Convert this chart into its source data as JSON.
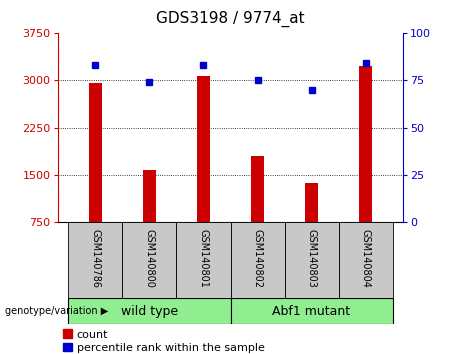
{
  "title": "GDS3198 / 9774_at",
  "samples": [
    "GSM140786",
    "GSM140800",
    "GSM140801",
    "GSM140802",
    "GSM140803",
    "GSM140804"
  ],
  "counts": [
    2950,
    1580,
    3060,
    1800,
    1380,
    3230
  ],
  "percentile_ranks": [
    83,
    74,
    83,
    75,
    70,
    84
  ],
  "ylim_left": [
    750,
    3750
  ],
  "ylim_right": [
    0,
    100
  ],
  "yticks_left": [
    750,
    1500,
    2250,
    3000,
    3750
  ],
  "yticks_right": [
    0,
    25,
    50,
    75,
    100
  ],
  "bar_color": "#cc0000",
  "dot_color": "#0000cc",
  "bg_label_area": "#c8c8c8",
  "bg_green": "#90ee90",
  "title_fontsize": 11,
  "tick_fontsize": 8,
  "sample_fontsize": 7,
  "group_fontsize": 9,
  "legend_fontsize": 8
}
